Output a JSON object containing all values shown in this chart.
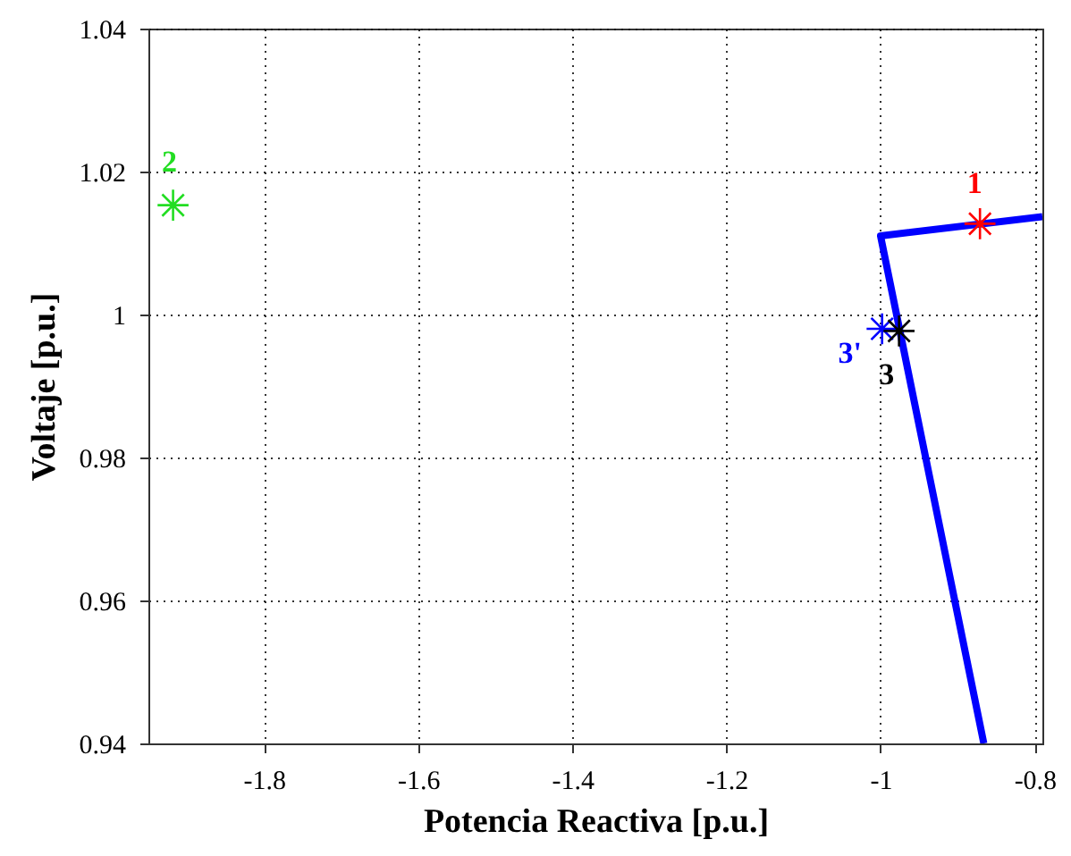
{
  "chart_data": {
    "type": "scatter",
    "xlabel": "Potencia Reactiva  [p.u.]",
    "ylabel": "Voltaje  [p.u.]",
    "xlim": [
      -1.95,
      -0.79
    ],
    "xticks": [
      -1.8,
      -1.6,
      -1.4,
      -1.2,
      -1,
      -0.8
    ],
    "ylim": [
      0.94,
      1.04
    ],
    "yticks": [
      0.94,
      0.96,
      0.98,
      1,
      1.02,
      1.04
    ],
    "grid": true,
    "marker": "cross",
    "series": [
      {
        "type": "line",
        "marker": "none",
        "color": "#0000ff",
        "x": [
          -0.79,
          -1.0,
          -0.866
        ],
        "values": [
          1.0137,
          1.011,
          0.94
        ]
      },
      {
        "name": "1",
        "color": "#ff0000",
        "x": [
          -0.871
        ],
        "values": [
          1.0127
        ]
      },
      {
        "name": "2",
        "color": "#22dd22",
        "x": [
          -1.918
        ],
        "values": [
          1.0153
        ]
      },
      {
        "name": "3'",
        "color": "#0000ff",
        "x": [
          -0.998
        ],
        "values": [
          0.998
        ]
      },
      {
        "name": "3",
        "color": "#000000",
        "x": [
          -0.976
        ],
        "values": [
          0.9977
        ]
      }
    ]
  }
}
